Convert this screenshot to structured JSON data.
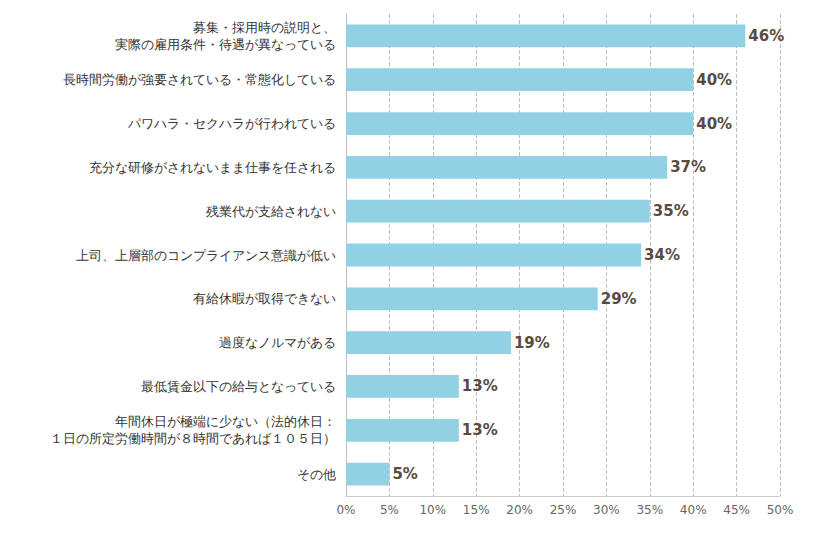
{
  "chart_data": {
    "type": "bar",
    "orientation": "horizontal",
    "categories": [
      "募集・採用時の説明と、\n実際の雇用条件・待遇が異なっている",
      "長時間労働が強要されている・常態化している",
      "パワハラ・セクハラが行われている",
      "充分な研修がされないまま仕事を任される",
      "残業代が支給されない",
      "上司、上層部のコンプライアンス意識が低い",
      "有給休暇が取得できない",
      "過度なノルマがある",
      "最低賃金以下の給与となっている",
      "年間休日が極端に少ない（法的休日：\n１日の所定労働時間が８時間であれば１０５日）",
      "その他"
    ],
    "values": [
      46,
      40,
      40,
      37,
      35,
      34,
      29,
      19,
      13,
      13,
      5
    ],
    "value_labels": [
      "46%",
      "40%",
      "40%",
      "37%",
      "35%",
      "34%",
      "29%",
      "19%",
      "13%",
      "13%",
      "5%"
    ],
    "data_labels": true,
    "color": "#92d1e3",
    "xlim": [
      0,
      50
    ],
    "xticks": [
      {
        "value": 0,
        "label": "0%"
      },
      {
        "value": 5,
        "label": "5%"
      },
      {
        "value": 10,
        "label": "10%"
      },
      {
        "value": 15,
        "label": "15%"
      },
      {
        "value": 20,
        "label": "20%"
      },
      {
        "value": 25,
        "label": "25%"
      },
      {
        "value": 30,
        "label": "30%"
      },
      {
        "value": 35,
        "label": "35%"
      },
      {
        "value": 40,
        "label": "40%"
      },
      {
        "value": 45,
        "label": "45%"
      },
      {
        "value": 50,
        "label": "50%"
      }
    ],
    "grid": true
  }
}
